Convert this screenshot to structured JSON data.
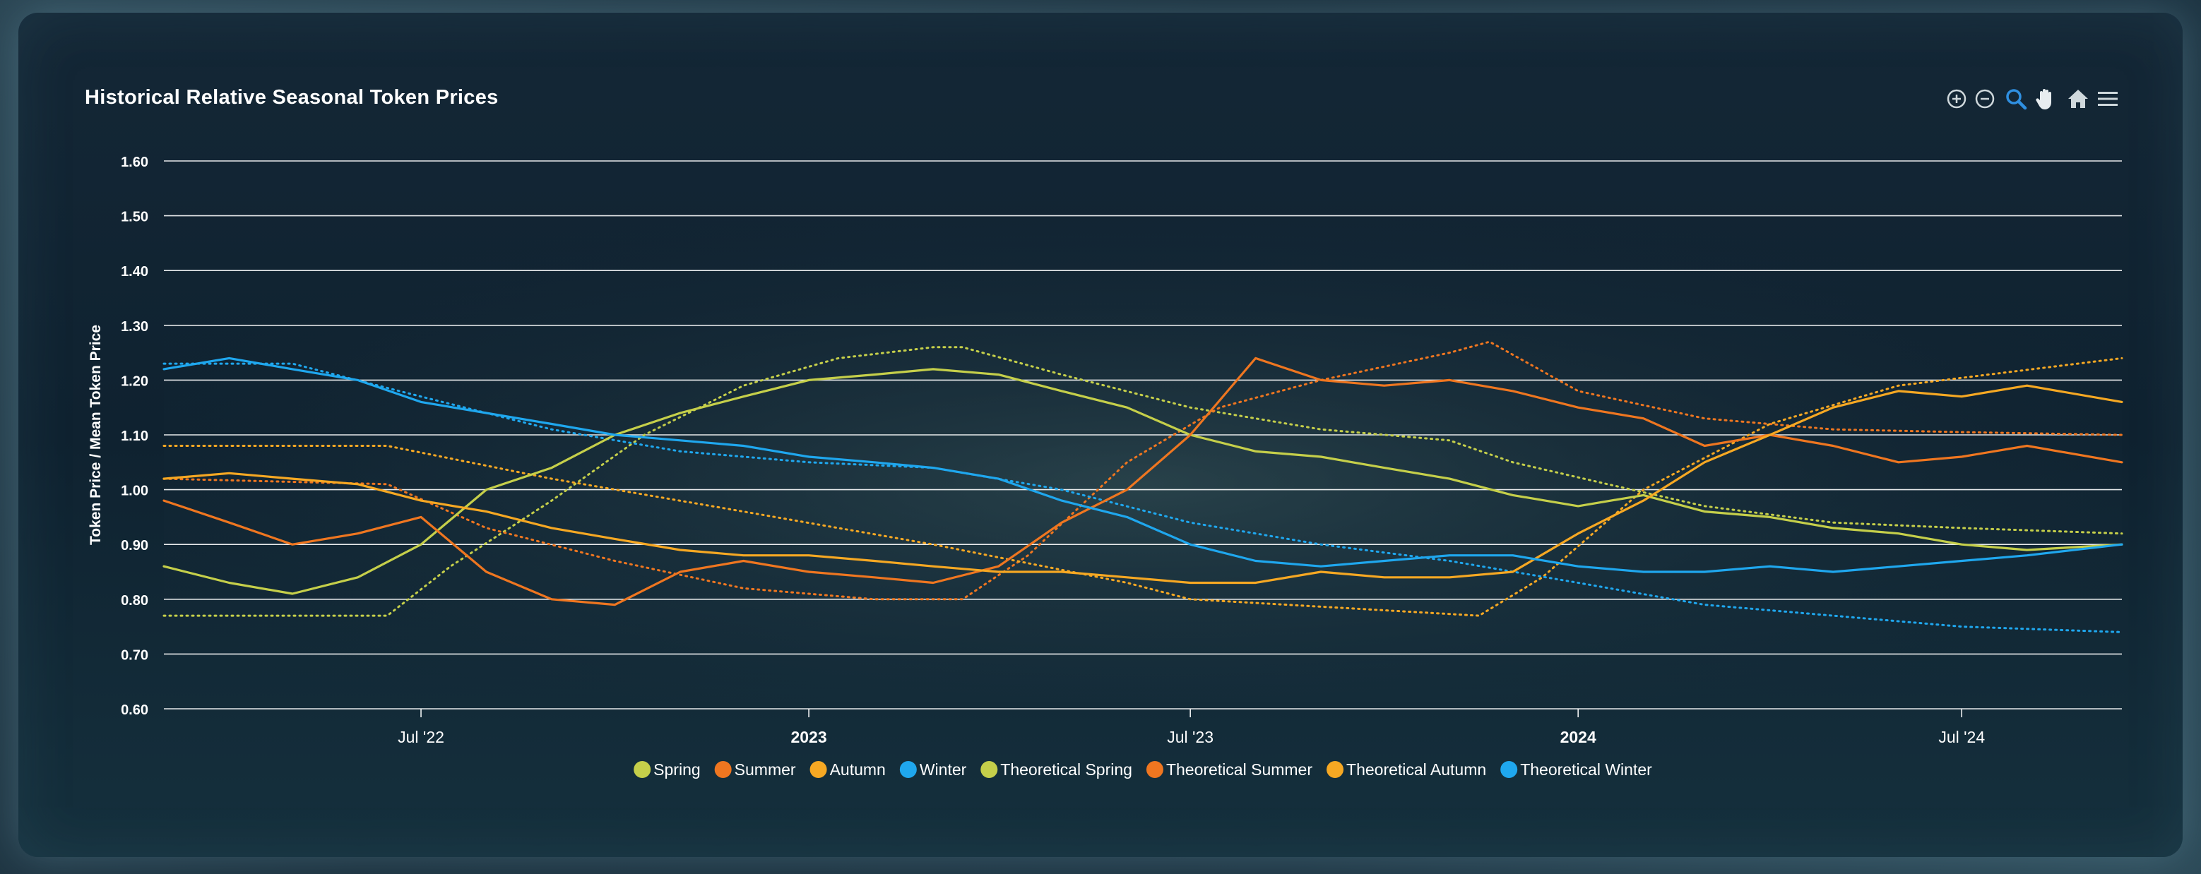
{
  "chart_data": {
    "type": "line",
    "title": "Historical Relative Seasonal Token Prices",
    "ylabel": "Token Price / Mean Token Price",
    "xlabel": "",
    "ylim": [
      0.6,
      1.6
    ],
    "yticks": [
      "0.60",
      "0.70",
      "0.80",
      "0.90",
      "1.00",
      "1.10",
      "1.20",
      "1.30",
      "1.40",
      "1.50",
      "1.60"
    ],
    "xlim": [
      "2022-03-01",
      "2024-09-15"
    ],
    "xticks": [
      {
        "date": "2022-07-01",
        "label": "Jul '22",
        "bold": false
      },
      {
        "date": "2023-01-01",
        "label": "2023",
        "bold": true
      },
      {
        "date": "2023-07-01",
        "label": "Jul '23",
        "bold": false
      },
      {
        "date": "2024-01-01",
        "label": "2024",
        "bold": true
      },
      {
        "date": "2024-07-01",
        "label": "Jul '24",
        "bold": false
      }
    ],
    "grid": true,
    "legend_position": "bottom-center",
    "series": [
      {
        "name": "Spring",
        "color": "#c5cf4a",
        "style": "solid",
        "points": [
          [
            "2022-03-01",
            0.86
          ],
          [
            "2022-04-01",
            0.83
          ],
          [
            "2022-05-01",
            0.81
          ],
          [
            "2022-06-01",
            0.84
          ],
          [
            "2022-07-01",
            0.9
          ],
          [
            "2022-08-01",
            1.0
          ],
          [
            "2022-09-01",
            1.04
          ],
          [
            "2022-10-01",
            1.1
          ],
          [
            "2022-11-01",
            1.14
          ],
          [
            "2022-12-01",
            1.17
          ],
          [
            "2023-01-01",
            1.2
          ],
          [
            "2023-02-01",
            1.21
          ],
          [
            "2023-03-01",
            1.22
          ],
          [
            "2023-04-01",
            1.21
          ],
          [
            "2023-05-01",
            1.18
          ],
          [
            "2023-06-01",
            1.15
          ],
          [
            "2023-07-01",
            1.1
          ],
          [
            "2023-08-01",
            1.07
          ],
          [
            "2023-09-01",
            1.06
          ],
          [
            "2023-10-01",
            1.04
          ],
          [
            "2023-11-01",
            1.02
          ],
          [
            "2023-12-01",
            0.99
          ],
          [
            "2024-01-01",
            0.97
          ],
          [
            "2024-02-01",
            0.99
          ],
          [
            "2024-03-01",
            0.96
          ],
          [
            "2024-04-01",
            0.95
          ],
          [
            "2024-05-01",
            0.93
          ],
          [
            "2024-06-01",
            0.92
          ],
          [
            "2024-07-01",
            0.9
          ],
          [
            "2024-08-01",
            0.89
          ],
          [
            "2024-09-15",
            0.9
          ]
        ]
      },
      {
        "name": "Summer",
        "color": "#ef7620",
        "style": "solid",
        "points": [
          [
            "2022-03-01",
            0.98
          ],
          [
            "2022-04-01",
            0.94
          ],
          [
            "2022-05-01",
            0.9
          ],
          [
            "2022-06-01",
            0.92
          ],
          [
            "2022-07-01",
            0.95
          ],
          [
            "2022-08-01",
            0.85
          ],
          [
            "2022-09-01",
            0.8
          ],
          [
            "2022-10-01",
            0.79
          ],
          [
            "2022-11-01",
            0.85
          ],
          [
            "2022-12-01",
            0.87
          ],
          [
            "2023-01-01",
            0.85
          ],
          [
            "2023-02-01",
            0.84
          ],
          [
            "2023-03-01",
            0.83
          ],
          [
            "2023-04-01",
            0.86
          ],
          [
            "2023-05-01",
            0.94
          ],
          [
            "2023-06-01",
            1.0
          ],
          [
            "2023-07-01",
            1.1
          ],
          [
            "2023-08-01",
            1.24
          ],
          [
            "2023-09-01",
            1.2
          ],
          [
            "2023-10-01",
            1.19
          ],
          [
            "2023-11-01",
            1.2
          ],
          [
            "2023-12-01",
            1.18
          ],
          [
            "2024-01-01",
            1.15
          ],
          [
            "2024-02-01",
            1.13
          ],
          [
            "2024-03-01",
            1.08
          ],
          [
            "2024-04-01",
            1.1
          ],
          [
            "2024-05-01",
            1.08
          ],
          [
            "2024-06-01",
            1.05
          ],
          [
            "2024-07-01",
            1.06
          ],
          [
            "2024-08-01",
            1.08
          ],
          [
            "2024-09-15",
            1.05
          ]
        ]
      },
      {
        "name": "Autumn",
        "color": "#f6a823",
        "style": "solid",
        "points": [
          [
            "2022-03-01",
            1.02
          ],
          [
            "2022-04-01",
            1.03
          ],
          [
            "2022-05-01",
            1.02
          ],
          [
            "2022-06-01",
            1.01
          ],
          [
            "2022-07-01",
            0.98
          ],
          [
            "2022-08-01",
            0.96
          ],
          [
            "2022-09-01",
            0.93
          ],
          [
            "2022-10-01",
            0.91
          ],
          [
            "2022-11-01",
            0.89
          ],
          [
            "2022-12-01",
            0.88
          ],
          [
            "2023-01-01",
            0.88
          ],
          [
            "2023-02-01",
            0.87
          ],
          [
            "2023-03-01",
            0.86
          ],
          [
            "2023-04-01",
            0.85
          ],
          [
            "2023-05-01",
            0.85
          ],
          [
            "2023-06-01",
            0.84
          ],
          [
            "2023-07-01",
            0.83
          ],
          [
            "2023-08-01",
            0.83
          ],
          [
            "2023-09-01",
            0.85
          ],
          [
            "2023-10-01",
            0.84
          ],
          [
            "2023-11-01",
            0.84
          ],
          [
            "2023-12-01",
            0.85
          ],
          [
            "2024-01-01",
            0.92
          ],
          [
            "2024-02-01",
            0.98
          ],
          [
            "2024-03-01",
            1.05
          ],
          [
            "2024-04-01",
            1.1
          ],
          [
            "2024-05-01",
            1.15
          ],
          [
            "2024-06-01",
            1.18
          ],
          [
            "2024-07-01",
            1.17
          ],
          [
            "2024-08-01",
            1.19
          ],
          [
            "2024-09-15",
            1.16
          ]
        ]
      },
      {
        "name": "Winter",
        "color": "#1fa7ee",
        "style": "solid",
        "points": [
          [
            "2022-03-01",
            1.22
          ],
          [
            "2022-04-01",
            1.24
          ],
          [
            "2022-05-01",
            1.22
          ],
          [
            "2022-06-01",
            1.2
          ],
          [
            "2022-07-01",
            1.16
          ],
          [
            "2022-08-01",
            1.14
          ],
          [
            "2022-09-01",
            1.12
          ],
          [
            "2022-10-01",
            1.1
          ],
          [
            "2022-11-01",
            1.09
          ],
          [
            "2022-12-01",
            1.08
          ],
          [
            "2023-01-01",
            1.06
          ],
          [
            "2023-02-01",
            1.05
          ],
          [
            "2023-03-01",
            1.04
          ],
          [
            "2023-04-01",
            1.02
          ],
          [
            "2023-05-01",
            0.98
          ],
          [
            "2023-06-01",
            0.95
          ],
          [
            "2023-07-01",
            0.9
          ],
          [
            "2023-08-01",
            0.87
          ],
          [
            "2023-09-01",
            0.86
          ],
          [
            "2023-10-01",
            0.87
          ],
          [
            "2023-11-01",
            0.88
          ],
          [
            "2023-12-01",
            0.88
          ],
          [
            "2024-01-01",
            0.86
          ],
          [
            "2024-02-01",
            0.85
          ],
          [
            "2024-03-01",
            0.85
          ],
          [
            "2024-04-01",
            0.86
          ],
          [
            "2024-05-01",
            0.85
          ],
          [
            "2024-06-01",
            0.86
          ],
          [
            "2024-07-01",
            0.87
          ],
          [
            "2024-08-01",
            0.88
          ],
          [
            "2024-09-15",
            0.9
          ]
        ]
      },
      {
        "name": "Theoretical Spring",
        "color": "#c5cf4a",
        "style": "dotted",
        "points": [
          [
            "2022-03-01",
            0.77
          ],
          [
            "2022-06-15",
            0.77
          ],
          [
            "2022-07-15",
            0.86
          ],
          [
            "2022-09-01",
            0.98
          ],
          [
            "2022-10-15",
            1.1
          ],
          [
            "2022-12-01",
            1.19
          ],
          [
            "2023-01-15",
            1.24
          ],
          [
            "2023-03-01",
            1.26
          ],
          [
            "2023-03-15",
            1.26
          ],
          [
            "2023-05-01",
            1.21
          ],
          [
            "2023-07-01",
            1.15
          ],
          [
            "2023-09-01",
            1.11
          ],
          [
            "2023-11-01",
            1.09
          ],
          [
            "2023-12-01",
            1.05
          ],
          [
            "2024-01-15",
            1.01
          ],
          [
            "2024-03-01",
            0.97
          ],
          [
            "2024-05-01",
            0.94
          ],
          [
            "2024-07-01",
            0.93
          ],
          [
            "2024-09-15",
            0.92
          ]
        ]
      },
      {
        "name": "Theoretical Summer",
        "color": "#ef7620",
        "style": "dotted",
        "points": [
          [
            "2022-03-01",
            1.02
          ],
          [
            "2022-06-15",
            1.01
          ],
          [
            "2022-08-01",
            0.93
          ],
          [
            "2022-10-01",
            0.87
          ],
          [
            "2022-12-01",
            0.82
          ],
          [
            "2023-02-01",
            0.8
          ],
          [
            "2023-03-15",
            0.8
          ],
          [
            "2023-04-15",
            0.88
          ],
          [
            "2023-06-01",
            1.05
          ],
          [
            "2023-07-15",
            1.15
          ],
          [
            "2023-09-01",
            1.2
          ],
          [
            "2023-11-01",
            1.25
          ],
          [
            "2023-11-20",
            1.27
          ],
          [
            "2024-01-01",
            1.18
          ],
          [
            "2024-03-01",
            1.13
          ],
          [
            "2024-05-01",
            1.11
          ],
          [
            "2024-07-01",
            1.105
          ],
          [
            "2024-09-15",
            1.1
          ]
        ]
      },
      {
        "name": "Theoretical Autumn",
        "color": "#f6a823",
        "style": "dotted",
        "points": [
          [
            "2022-03-01",
            1.08
          ],
          [
            "2022-06-15",
            1.08
          ],
          [
            "2022-09-01",
            1.02
          ],
          [
            "2022-12-01",
            0.96
          ],
          [
            "2023-03-01",
            0.9
          ],
          [
            "2023-06-01",
            0.83
          ],
          [
            "2023-07-01",
            0.8
          ],
          [
            "2023-11-15",
            0.77
          ],
          [
            "2023-12-15",
            0.84
          ],
          [
            "2024-02-01",
            1.0
          ],
          [
            "2024-04-01",
            1.12
          ],
          [
            "2024-06-01",
            1.19
          ],
          [
            "2024-09-15",
            1.24
          ]
        ]
      },
      {
        "name": "Theoretical Winter",
        "color": "#1fa7ee",
        "style": "dotted",
        "points": [
          [
            "2022-03-01",
            1.23
          ],
          [
            "2022-05-01",
            1.23
          ],
          [
            "2022-07-01",
            1.17
          ],
          [
            "2022-09-01",
            1.11
          ],
          [
            "2022-11-01",
            1.07
          ],
          [
            "2023-01-01",
            1.05
          ],
          [
            "2023-03-01",
            1.04
          ],
          [
            "2023-05-01",
            1.0
          ],
          [
            "2023-07-01",
            0.94
          ],
          [
            "2023-09-01",
            0.9
          ],
          [
            "2023-11-01",
            0.87
          ],
          [
            "2024-01-01",
            0.83
          ],
          [
            "2024-03-01",
            0.79
          ],
          [
            "2024-05-01",
            0.77
          ],
          [
            "2024-07-01",
            0.75
          ],
          [
            "2024-09-15",
            0.74
          ]
        ]
      }
    ]
  },
  "toolbar": [
    {
      "icon": "zoom-in-icon",
      "color": "#cfd8dc"
    },
    {
      "icon": "zoom-out-icon",
      "color": "#cfd8dc"
    },
    {
      "icon": "selection-zoom-icon",
      "color": "#2f8fe0"
    },
    {
      "icon": "pan-hand-icon",
      "color": "#e8edf0"
    },
    {
      "icon": "reset-home-icon",
      "color": "#cfd8dc"
    },
    {
      "icon": "menu-icon",
      "color": "#cfd8dc"
    }
  ],
  "colors": {
    "background": "#0f2230",
    "grid": "#ffffff",
    "text": "#ffffff"
  }
}
